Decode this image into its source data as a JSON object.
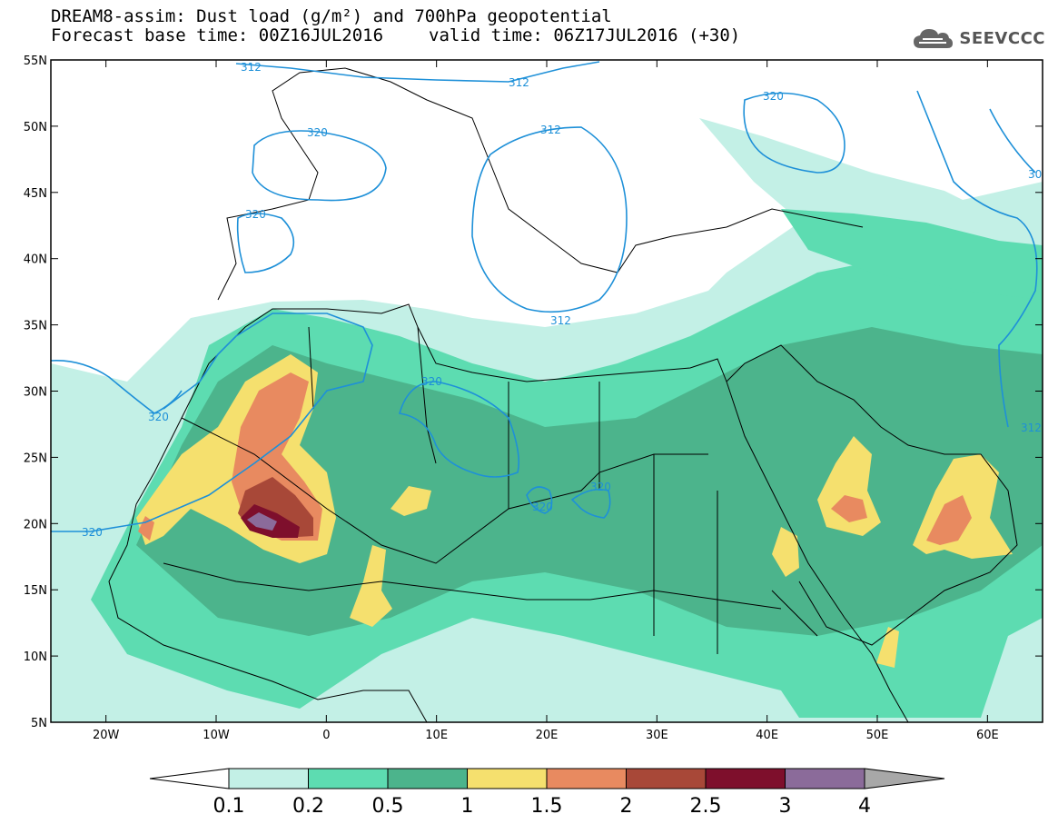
{
  "title": {
    "line1": "DREAM8-assim: Dust load (g/m²) and 700hPa geopotential",
    "line2_left": "Forecast base time: 00Z16JUL2016",
    "line2_right": "valid time: 06Z17JUL2016 (+30)"
  },
  "logo": {
    "text": "SEEVCCC",
    "icon": "cloud-icon"
  },
  "map": {
    "lat_labels": [
      "55N",
      "50N",
      "45N",
      "40N",
      "35N",
      "30N",
      "25N",
      "20N",
      "15N",
      "10N",
      "5N"
    ],
    "lat_values": [
      55,
      50,
      45,
      40,
      35,
      30,
      25,
      20,
      15,
      10,
      5
    ],
    "lon_labels": [
      "20W",
      "10W",
      "0",
      "10E",
      "20E",
      "30E",
      "40E",
      "50E",
      "60E"
    ],
    "lon_values": [
      -20,
      -10,
      0,
      10,
      20,
      30,
      40,
      50,
      60
    ],
    "lon_range": [
      -25,
      65
    ],
    "lat_range": [
      5,
      55
    ],
    "contour_labels": [
      "312",
      "320",
      "312",
      "320",
      "320",
      "312",
      "320",
      "320",
      "320",
      "320",
      "312",
      "30",
      "312"
    ]
  },
  "colorbar": {
    "ticks": [
      "0.1",
      "0.2",
      "0.5",
      "1",
      "1.5",
      "2",
      "2.5",
      "3",
      "4"
    ],
    "colors": [
      "#c3f0e6",
      "#5ddcb1",
      "#4cb48c",
      "#f5e06e",
      "#e88a60",
      "#a84838",
      "#7e0f2c",
      "#8b6b9a",
      "#a8a8a8"
    ]
  },
  "colors": {
    "dust_light": "#c3f0e6",
    "dust_mid": "#5ddcb1",
    "dust_dark": "#4cb48c",
    "dust_yellow": "#f5e06e",
    "dust_orange": "#e88a60",
    "dust_red": "#a84838",
    "dust_maroon": "#7e0f2c",
    "dust_purple": "#8b6b9a",
    "contour": "#1e90d8"
  }
}
